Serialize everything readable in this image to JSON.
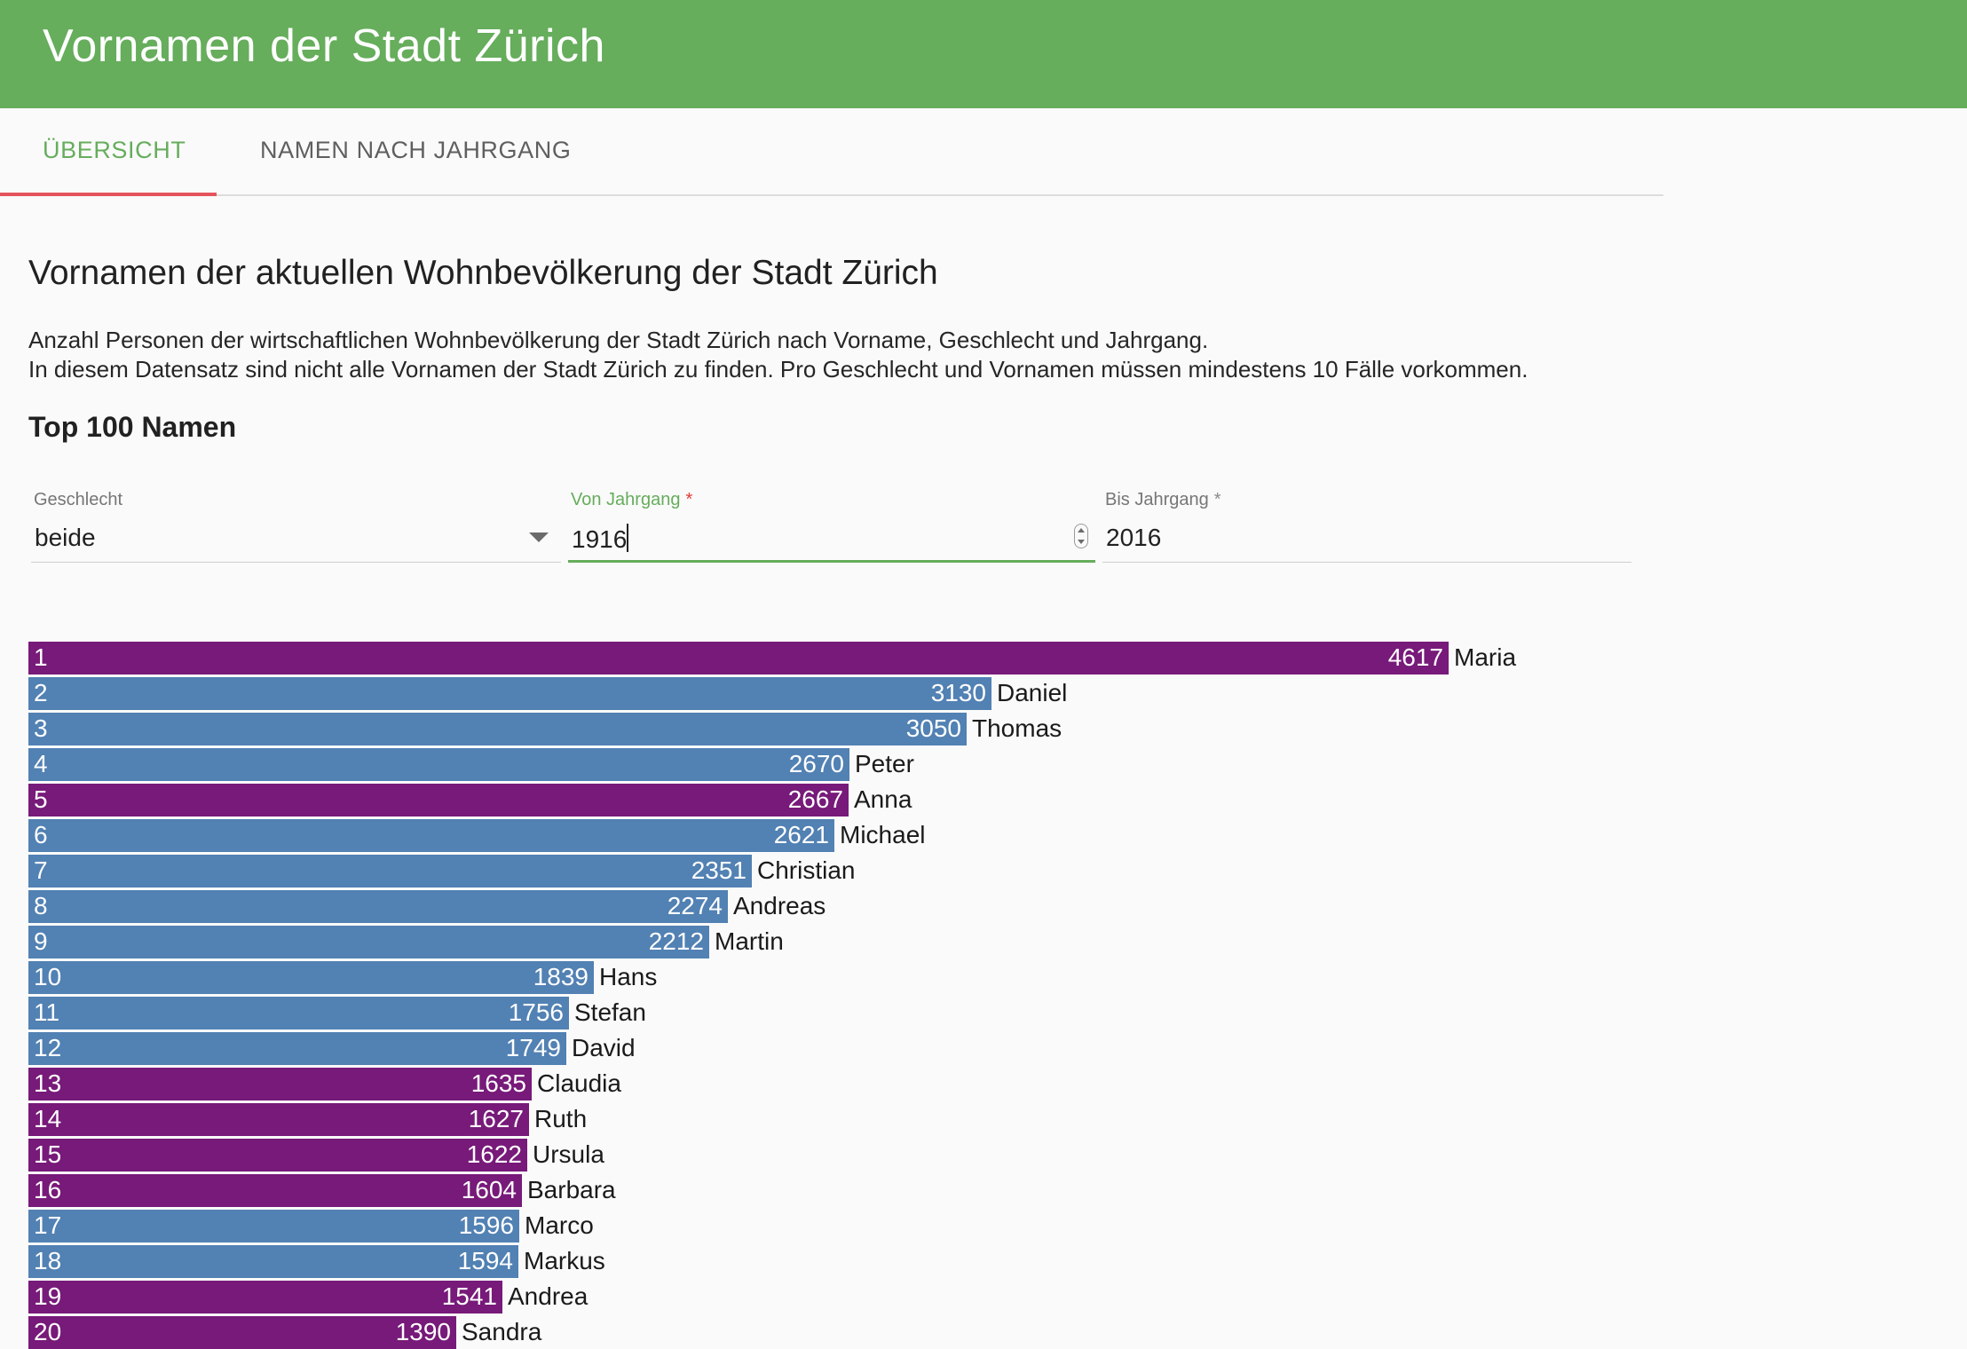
{
  "app": {
    "title": "Vornamen der Stadt Zürich"
  },
  "tabs": [
    {
      "label": "ÜBERSICHT",
      "active": true
    },
    {
      "label": "NAMEN NACH JAHRGANG",
      "active": false
    }
  ],
  "page": {
    "heading": "Vornamen der aktuellen Wohnbevölkerung der Stadt Zürich",
    "description_line1": "Anzahl Personen der wirtschaftlichen Wohnbevölkerung der Stadt Zürich nach Vorname, Geschlecht und Jahrgang.",
    "description_line2": "In diesem Datensatz sind nicht alle Vornamen der Stadt Zürich zu finden. Pro Geschlecht und Vornamen müssen mindestens 10 Fälle vorkommen.",
    "section_heading": "Top 100 Namen"
  },
  "filters": {
    "gender": {
      "label": "Geschlecht",
      "value": "beide"
    },
    "from_year": {
      "label": "Von Jahrgang",
      "required_mark": "*",
      "value": "1916"
    },
    "to_year": {
      "label": "Bis Jahrgang",
      "required_mark": "*",
      "value": "2016"
    }
  },
  "colors": {
    "female": "#771a79",
    "male": "#5281b3",
    "accent": "#66ad5c",
    "tab_indicator": "#e5545c"
  },
  "chart_data": {
    "type": "bar",
    "orientation": "horizontal",
    "title": "Top 100 Namen",
    "xlim": [
      0,
      4617
    ],
    "bars": [
      {
        "rank": "1",
        "name": "Maria",
        "value": 4617,
        "gender": "female"
      },
      {
        "rank": "2",
        "name": "Daniel",
        "value": 3130,
        "gender": "male"
      },
      {
        "rank": "3",
        "name": "Thomas",
        "value": 3050,
        "gender": "male"
      },
      {
        "rank": "4",
        "name": "Peter",
        "value": 2670,
        "gender": "male"
      },
      {
        "rank": "5",
        "name": "Anna",
        "value": 2667,
        "gender": "female"
      },
      {
        "rank": "6",
        "name": "Michael",
        "value": 2621,
        "gender": "male"
      },
      {
        "rank": "7",
        "name": "Christian",
        "value": 2351,
        "gender": "male"
      },
      {
        "rank": "8",
        "name": "Andreas",
        "value": 2274,
        "gender": "male"
      },
      {
        "rank": "9",
        "name": "Martin",
        "value": 2212,
        "gender": "male"
      },
      {
        "rank": "10",
        "name": "Hans",
        "value": 1839,
        "gender": "male"
      },
      {
        "rank": "11",
        "name": "Stefan",
        "value": 1756,
        "gender": "male"
      },
      {
        "rank": "12",
        "name": "David",
        "value": 1749,
        "gender": "male"
      },
      {
        "rank": "13",
        "name": "Claudia",
        "value": 1635,
        "gender": "female"
      },
      {
        "rank": "14",
        "name": "Ruth",
        "value": 1627,
        "gender": "female"
      },
      {
        "rank": "15",
        "name": "Ursula",
        "value": 1622,
        "gender": "female"
      },
      {
        "rank": "16",
        "name": "Barbara",
        "value": 1604,
        "gender": "female"
      },
      {
        "rank": "17",
        "name": "Marco",
        "value": 1596,
        "gender": "male"
      },
      {
        "rank": "18",
        "name": "Markus",
        "value": 1594,
        "gender": "male"
      },
      {
        "rank": "19",
        "name": "Andrea",
        "value": 1541,
        "gender": "female"
      },
      {
        "rank": "20",
        "name": "Sandra",
        "value": 1390,
        "gender": "female"
      }
    ]
  }
}
